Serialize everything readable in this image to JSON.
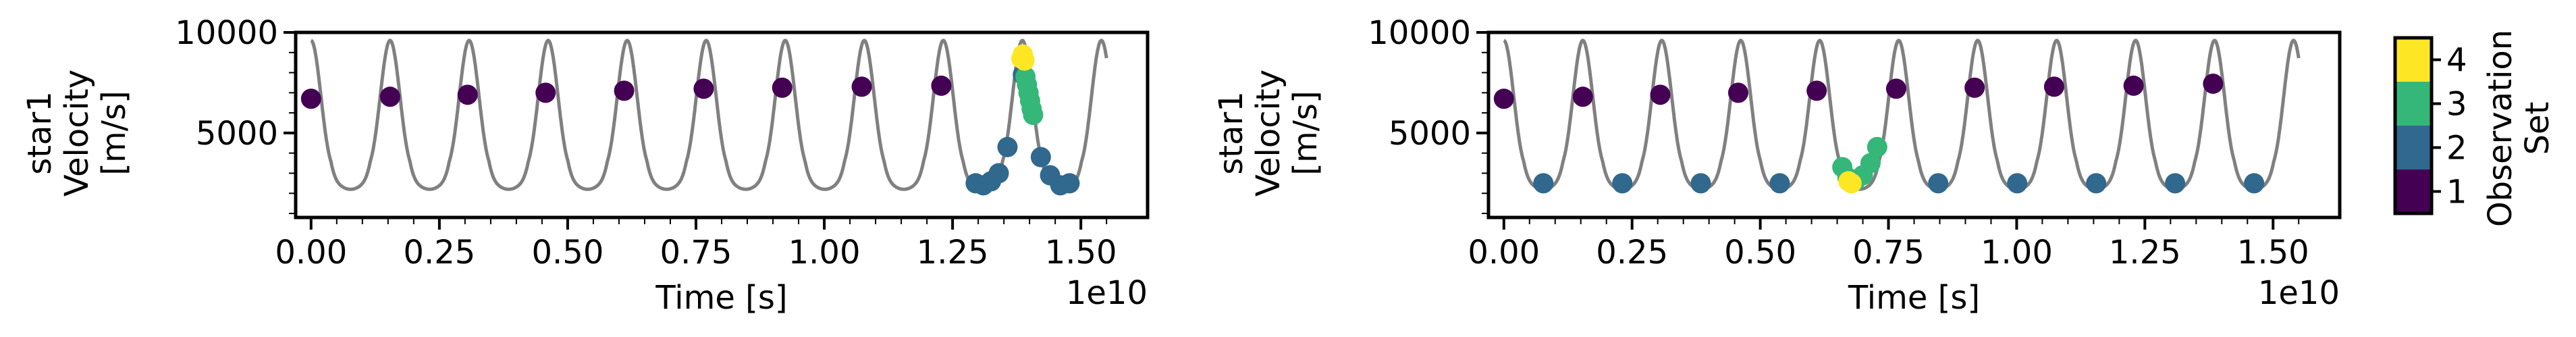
{
  "chart_data": [
    {
      "type": "scatter",
      "ylabel_lines": [
        "star1",
        "Velocity",
        "[m/s]"
      ],
      "xlabel": "Time [s]",
      "x_offset_text": "1e10",
      "x_scale": 10000000000,
      "xlim": [
        -0.03,
        1.63
      ],
      "ylim": [
        800,
        10000
      ],
      "x_ticks": [
        "0.00",
        "0.25",
        "0.50",
        "0.75",
        "1.00",
        "1.25",
        "1.50"
      ],
      "x_tick_values": [
        0,
        0.25,
        0.5,
        0.75,
        1.0,
        1.25,
        1.5
      ],
      "y_ticks": [
        "5000",
        "10000"
      ],
      "y_tick_values": [
        5000,
        10000
      ],
      "model_curve": {
        "color": "#808080",
        "period": 0.154,
        "phase_offset": 0.0,
        "x_start": 0.0,
        "x_end": 1.55
      },
      "series": [
        {
          "set": 1,
          "color": "#440154",
          "points": [
            [
              0.0,
              6700
            ],
            [
              0.154,
              6800
            ],
            [
              0.305,
              6900
            ],
            [
              0.457,
              7000
            ],
            [
              0.61,
              7100
            ],
            [
              0.765,
              7200
            ],
            [
              0.918,
              7250
            ],
            [
              1.073,
              7300
            ],
            [
              1.228,
              7350
            ]
          ]
        },
        {
          "set": 2,
          "color": "#31688e",
          "points": [
            [
              1.295,
              2500
            ],
            [
              1.31,
              2400
            ],
            [
              1.325,
              2600
            ],
            [
              1.34,
              3000
            ],
            [
              1.357,
              4300
            ],
            [
              1.387,
              7900
            ],
            [
              1.422,
              3800
            ],
            [
              1.44,
              2900
            ],
            [
              1.46,
              2400
            ],
            [
              1.478,
              2500
            ]
          ]
        },
        {
          "set": 3,
          "color": "#35b779",
          "points": [
            [
              1.392,
              7800
            ],
            [
              1.395,
              7400
            ],
            [
              1.398,
              7000
            ],
            [
              1.401,
              6600
            ],
            [
              1.404,
              6200
            ],
            [
              1.407,
              5900
            ]
          ]
        },
        {
          "set": 4,
          "color": "#fde725",
          "points": [
            [
              1.384,
              8700
            ],
            [
              1.387,
              8900
            ],
            [
              1.39,
              8600
            ]
          ]
        }
      ]
    },
    {
      "type": "scatter",
      "ylabel_lines": [
        "star1",
        "Velocity",
        "[m/s]"
      ],
      "xlabel": "Time [s]",
      "x_offset_text": "1e10",
      "x_scale": 10000000000,
      "xlim": [
        -0.03,
        1.63
      ],
      "ylim": [
        800,
        10000
      ],
      "x_ticks": [
        "0.00",
        "0.25",
        "0.50",
        "0.75",
        "1.00",
        "1.25",
        "1.50"
      ],
      "x_tick_values": [
        0,
        0.25,
        0.5,
        0.75,
        1.0,
        1.25,
        1.5
      ],
      "y_ticks": [
        "5000",
        "10000"
      ],
      "y_tick_values": [
        5000,
        10000
      ],
      "model_curve": {
        "color": "#808080",
        "period": 0.154,
        "phase_offset": 0.0,
        "x_start": 0.0,
        "x_end": 1.55
      },
      "series": [
        {
          "set": 1,
          "color": "#440154",
          "points": [
            [
              0.0,
              6700
            ],
            [
              0.154,
              6800
            ],
            [
              0.305,
              6900
            ],
            [
              0.457,
              7000
            ],
            [
              0.61,
              7100
            ],
            [
              0.765,
              7200
            ],
            [
              0.918,
              7250
            ],
            [
              1.073,
              7300
            ],
            [
              1.228,
              7350
            ],
            [
              1.383,
              7450
            ]
          ]
        },
        {
          "set": 2,
          "color": "#31688e",
          "points": [
            [
              0.077,
              2500
            ],
            [
              0.231,
              2500
            ],
            [
              0.384,
              2500
            ],
            [
              0.538,
              2500
            ],
            [
              0.847,
              2500
            ],
            [
              1.001,
              2500
            ],
            [
              1.155,
              2500
            ],
            [
              1.309,
              2500
            ],
            [
              1.463,
              2500
            ]
          ]
        },
        {
          "set": 3,
          "color": "#35b779",
          "points": [
            [
              0.66,
              3300
            ],
            [
              0.67,
              2800
            ],
            [
              0.685,
              2600
            ],
            [
              0.7,
              2900
            ],
            [
              0.715,
              3500
            ],
            [
              0.728,
              4300
            ]
          ]
        },
        {
          "set": 4,
          "color": "#fde725",
          "points": [
            [
              0.672,
              2600
            ],
            [
              0.678,
              2500
            ]
          ]
        }
      ]
    }
  ],
  "colorbar": {
    "label_lines": [
      "Observation",
      "Set"
    ],
    "ticks": [
      "1",
      "2",
      "3",
      "4"
    ],
    "colors": [
      "#440154",
      "#31688e",
      "#35b779",
      "#fde725"
    ]
  }
}
